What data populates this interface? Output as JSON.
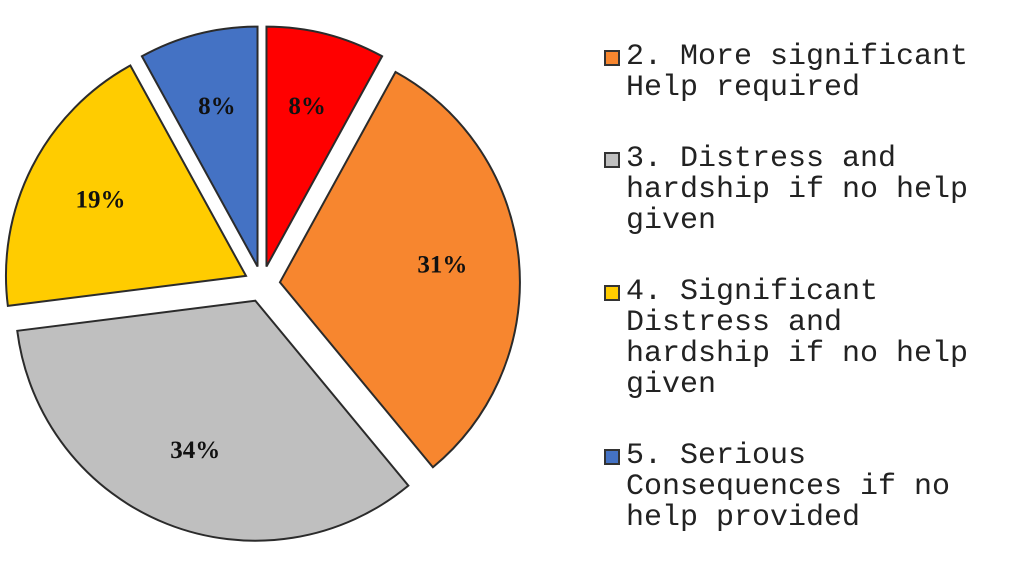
{
  "chart_data": {
    "type": "pie",
    "categories": [
      null,
      "2. More significant Help required",
      "3. Distress and hardship if no help given",
      "4. Significant Distress and hardship if no help given",
      "5. Serious Consequences if no help provided"
    ],
    "values": [
      8,
      31,
      34,
      19,
      8
    ],
    "value_labels": [
      "8%",
      "31%",
      "34%",
      "19%",
      "8%"
    ],
    "colors": [
      "#ff0000",
      "#f7862f",
      "#bfbfbf",
      "#ffcc00",
      "#4472c4"
    ],
    "legend": "right"
  }
}
